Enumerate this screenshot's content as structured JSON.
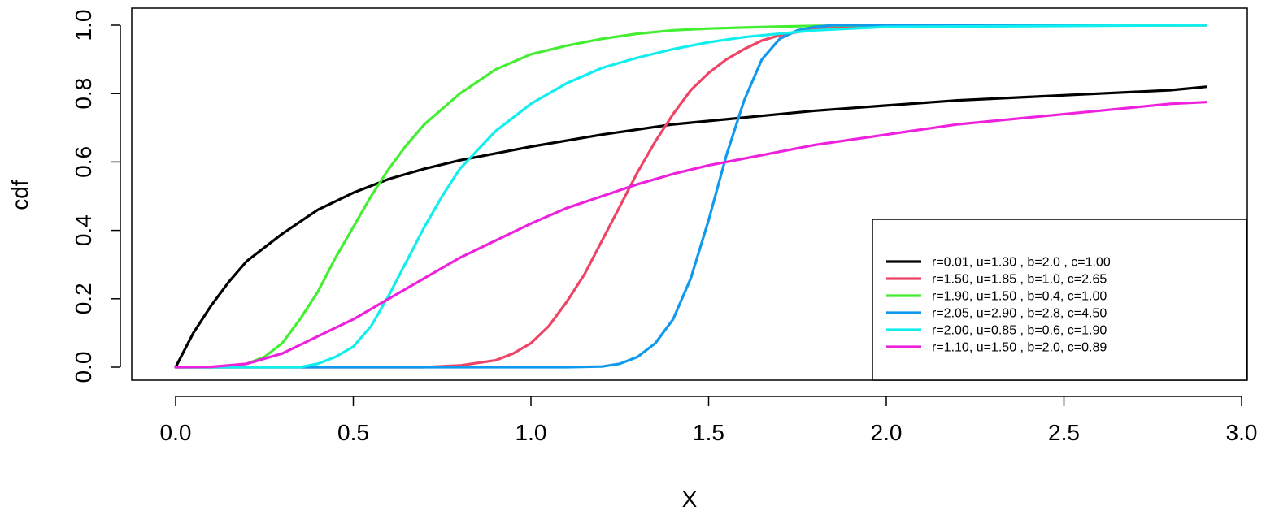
{
  "chart_data": {
    "type": "line",
    "title": "",
    "xlabel": "X",
    "ylabel": "cdf",
    "xlim": [
      0,
      3.0
    ],
    "ylim": [
      0,
      1.0
    ],
    "x_ticks": [
      "0.0",
      "0.5",
      "1.0",
      "1.5",
      "2.0",
      "2.5",
      "3.0"
    ],
    "y_ticks": [
      "0.0",
      "0.2",
      "0.4",
      "0.6",
      "0.8",
      "1.0"
    ],
    "grid": false,
    "legend_position": "bottom-right",
    "series": [
      {
        "name": "r=0.01, u=1.30 , b=2.0 , c=1.00",
        "color": "#000000",
        "x": [
          0,
          0.05,
          0.1,
          0.15,
          0.2,
          0.3,
          0.4,
          0.5,
          0.6,
          0.7,
          0.8,
          0.9,
          1.0,
          1.2,
          1.4,
          1.6,
          1.8,
          2.0,
          2.2,
          2.4,
          2.6,
          2.8,
          2.9
        ],
        "y": [
          0,
          0.1,
          0.18,
          0.25,
          0.31,
          0.39,
          0.46,
          0.51,
          0.55,
          0.58,
          0.605,
          0.625,
          0.645,
          0.68,
          0.71,
          0.73,
          0.75,
          0.765,
          0.78,
          0.79,
          0.8,
          0.81,
          0.82
        ]
      },
      {
        "name": "r=1.50, u=1.85 , b=1.0, c=2.65",
        "color": "#ee4466",
        "x": [
          0,
          0.7,
          0.8,
          0.9,
          0.95,
          1.0,
          1.05,
          1.1,
          1.15,
          1.2,
          1.25,
          1.3,
          1.35,
          1.4,
          1.45,
          1.5,
          1.55,
          1.6,
          1.65,
          1.7,
          1.75,
          1.8,
          1.9,
          2.0,
          2.9
        ],
        "y": [
          0,
          0,
          0.005,
          0.02,
          0.04,
          0.07,
          0.12,
          0.19,
          0.27,
          0.37,
          0.47,
          0.57,
          0.66,
          0.74,
          0.81,
          0.86,
          0.9,
          0.93,
          0.955,
          0.97,
          0.98,
          0.99,
          0.997,
          1.0,
          1.0
        ]
      },
      {
        "name": "r=1.90, u=1.50 , b=0.4, c=1.00",
        "color": "#44ee33",
        "x": [
          0,
          0.15,
          0.2,
          0.25,
          0.3,
          0.35,
          0.4,
          0.45,
          0.5,
          0.55,
          0.6,
          0.65,
          0.7,
          0.8,
          0.9,
          1.0,
          1.1,
          1.2,
          1.3,
          1.4,
          1.5,
          1.6,
          1.7,
          1.8,
          2.0,
          2.9
        ],
        "y": [
          0,
          0,
          0.01,
          0.03,
          0.07,
          0.14,
          0.22,
          0.32,
          0.41,
          0.5,
          0.58,
          0.65,
          0.71,
          0.8,
          0.87,
          0.915,
          0.94,
          0.96,
          0.975,
          0.985,
          0.99,
          0.993,
          0.996,
          0.998,
          1.0,
          1.0
        ]
      },
      {
        "name": "r=2.05, u=2.90 , b=2.8, c=4.50",
        "color": "#1199ee",
        "x": [
          0,
          1.1,
          1.2,
          1.25,
          1.3,
          1.35,
          1.4,
          1.45,
          1.5,
          1.55,
          1.6,
          1.65,
          1.7,
          1.75,
          1.8,
          1.85,
          2.0,
          2.9
        ],
        "y": [
          0,
          0,
          0.002,
          0.01,
          0.03,
          0.07,
          0.14,
          0.26,
          0.43,
          0.62,
          0.78,
          0.9,
          0.96,
          0.985,
          0.995,
          1.0,
          1.0,
          1.0
        ]
      },
      {
        "name": "r=2.00, u=0.85 , b=0.6, c=1.90",
        "color": "#11eeee",
        "x": [
          0,
          0.35,
          0.4,
          0.45,
          0.5,
          0.55,
          0.6,
          0.65,
          0.7,
          0.75,
          0.8,
          0.9,
          1.0,
          1.1,
          1.2,
          1.3,
          1.4,
          1.5,
          1.6,
          1.7,
          1.8,
          2.0,
          2.9
        ],
        "y": [
          0,
          0,
          0.01,
          0.03,
          0.06,
          0.12,
          0.21,
          0.31,
          0.41,
          0.5,
          0.58,
          0.69,
          0.77,
          0.83,
          0.875,
          0.905,
          0.93,
          0.95,
          0.965,
          0.975,
          0.985,
          0.995,
          1.0
        ]
      },
      {
        "name": "r=1.10, u=1.50 , b=2.0, c=0.89",
        "color": "#ee22dd",
        "x": [
          0,
          0.1,
          0.2,
          0.3,
          0.4,
          0.5,
          0.6,
          0.7,
          0.8,
          0.9,
          1.0,
          1.1,
          1.2,
          1.3,
          1.4,
          1.5,
          1.6,
          1.8,
          2.0,
          2.2,
          2.4,
          2.6,
          2.8,
          2.9
        ],
        "y": [
          0,
          0.001,
          0.01,
          0.04,
          0.09,
          0.14,
          0.2,
          0.26,
          0.32,
          0.37,
          0.42,
          0.465,
          0.5,
          0.535,
          0.565,
          0.59,
          0.61,
          0.65,
          0.68,
          0.71,
          0.73,
          0.75,
          0.77,
          0.775
        ]
      }
    ]
  }
}
